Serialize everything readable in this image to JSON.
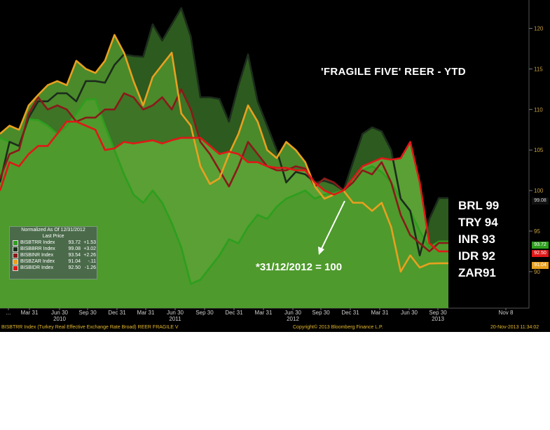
{
  "chart_data": {
    "type": "area",
    "title": "'FRAGILE FIVE' REER - YTD",
    "annotation": "*31/12/2012 = 100",
    "ylim": [
      85.5,
      123.5
    ],
    "y_ticks": [
      90,
      95,
      100,
      105,
      110,
      115,
      120
    ],
    "x_tick_labels": [
      "...",
      "Mar 31",
      "Jun 30",
      "Sep 30",
      "Dec 31",
      "Mar 31",
      "Jun 30",
      "Sep 30",
      "Dec 31",
      "Mar 31",
      "Jun 30",
      "Sep 30",
      "Dec 31",
      "Mar 31",
      "Jun 30",
      "Sep 30",
      "Nov 8"
    ],
    "year_labels": [
      "2010",
      "2011",
      "2012",
      "2013"
    ],
    "x": [
      "2009-12",
      "2010-01",
      "2010-02",
      "2010-03",
      "2010-04",
      "2010-05",
      "2010-06",
      "2010-07",
      "2010-08",
      "2010-09",
      "2010-10",
      "2010-11",
      "2010-12",
      "2011-01",
      "2011-02",
      "2011-03",
      "2011-04",
      "2011-05",
      "2011-06",
      "2011-07",
      "2011-08",
      "2011-09",
      "2011-10",
      "2011-11",
      "2011-12",
      "2012-01",
      "2012-02",
      "2012-03",
      "2012-04",
      "2012-05",
      "2012-06",
      "2012-07",
      "2012-08",
      "2012-09",
      "2012-10",
      "2012-11",
      "2012-12",
      "2013-01",
      "2013-02",
      "2013-03",
      "2013-04",
      "2013-05",
      "2013-06",
      "2013-07",
      "2013-08",
      "2013-09",
      "2013-10",
      "2013-11"
    ],
    "series": [
      {
        "name": "BISBTRR Index",
        "last_price": "93.72",
        "change": "+1.53",
        "color": "#2e9e1e",
        "values": [
          106.5,
          106.0,
          105.5,
          108.8,
          108.7,
          108.0,
          107.0,
          108.0,
          109.5,
          111.2,
          111.3,
          108.0,
          105.0,
          102.0,
          99.5,
          98.5,
          100.0,
          98.5,
          96.0,
          93.0,
          88.5,
          89.0,
          90.5,
          92.0,
          94.0,
          93.5,
          95.5,
          97.0,
          96.5,
          98.0,
          99.0,
          99.5,
          100.0,
          99.0,
          99.5,
          99.7,
          100.0,
          101.5,
          102.5,
          103.0,
          102.3,
          101.0,
          99.0,
          97.5,
          95.0,
          93.0,
          93.72,
          93.72
        ]
      },
      {
        "name": "BISBBRR Index",
        "last_price": "99.08",
        "change": "+3.02",
        "color": "#1c2c1c",
        "values": [
          101.0,
          106.0,
          105.5,
          109.0,
          111.0,
          111.0,
          112.0,
          112.0,
          111.0,
          113.5,
          113.5,
          113.3,
          115.5,
          116.8,
          116.6,
          116.5,
          120.5,
          118.5,
          120.5,
          122.5,
          119.0,
          111.5,
          111.5,
          111.3,
          108.5,
          113.0,
          116.8,
          111.0,
          108.0,
          105.0,
          101.0,
          102.3,
          102.0,
          101.0,
          101.2,
          100.8,
          100.0,
          103.5,
          107.0,
          107.8,
          107.3,
          105.0,
          99.0,
          97.5,
          92.0,
          96.5,
          99.08,
          99.08
        ]
      },
      {
        "name": "BISBINR Index",
        "last_price": "93.54",
        "change": "+2.26",
        "color": "#8a1a1a",
        "values": [
          101.5,
          104.5,
          105.0,
          109.5,
          111.5,
          110.0,
          110.5,
          110.0,
          108.5,
          109.0,
          109.0,
          110.0,
          110.0,
          112.0,
          111.5,
          110.0,
          110.5,
          111.5,
          110.0,
          112.5,
          110.0,
          106.0,
          104.5,
          102.5,
          100.5,
          103.0,
          106.0,
          104.5,
          103.0,
          102.5,
          102.5,
          103.0,
          102.7,
          100.5,
          101.5,
          101.0,
          100.0,
          101.0,
          102.5,
          102.0,
          103.5,
          101.0,
          97.0,
          94.5,
          93.5,
          92.5,
          93.54,
          93.54
        ]
      },
      {
        "name": "BISBZAR Index",
        "last_price": "91.04",
        "change": "-.11",
        "color": "#e8a020",
        "values": [
          107.0,
          108.0,
          107.5,
          110.5,
          111.8,
          113.0,
          113.5,
          113.0,
          116.0,
          115.0,
          114.5,
          116.0,
          119.2,
          117.0,
          113.5,
          110.5,
          114.0,
          115.5,
          117.0,
          109.5,
          108.0,
          103.0,
          100.8,
          101.5,
          104.5,
          107.0,
          110.5,
          108.5,
          105.0,
          104.0,
          106.0,
          105.0,
          103.5,
          100.5,
          99.0,
          99.5,
          100.0,
          98.5,
          98.5,
          97.5,
          98.5,
          95.5,
          90.0,
          92.0,
          90.5,
          91.0,
          91.04,
          91.04
        ]
      },
      {
        "name": "BISBIDR Index",
        "last_price": "92.50",
        "change": "-1.26",
        "color": "#e01818",
        "values": [
          100.0,
          103.5,
          103.0,
          104.5,
          105.5,
          105.5,
          107.0,
          108.5,
          108.5,
          108.0,
          107.5,
          105.0,
          105.2,
          106.0,
          105.8,
          106.0,
          106.2,
          105.8,
          106.2,
          106.5,
          106.5,
          106.5,
          105.5,
          104.5,
          104.8,
          104.5,
          103.5,
          103.5,
          103.0,
          102.8,
          102.8,
          102.5,
          102.5,
          101.0,
          100.0,
          99.5,
          100.0,
          101.5,
          103.0,
          103.5,
          104.0,
          103.8,
          104.0,
          106.0,
          101.0,
          93.5,
          92.5,
          92.5
        ]
      }
    ],
    "last_value_labels": [
      "99.08",
      "93.72",
      "92.50",
      "91.04"
    ],
    "side_labels": [
      "BRL 99",
      "TRY 94",
      "INR 93",
      "IDR 92",
      "ZAR91"
    ],
    "grid": false,
    "legend_position": "bottom-left"
  },
  "legend": {
    "title": "Normalized As Of 12/31/2012",
    "subtitle": "Last Price",
    "rows": [
      {
        "name": "BISBTRR Index",
        "price": "93.72",
        "change": "+1.53",
        "color": "#2e9e1e"
      },
      {
        "name": "BISBBRR Index",
        "price": "99.08",
        "change": "+3.02",
        "color": "#1c2c1c"
      },
      {
        "name": "BISBINR Index",
        "price": "93.54",
        "change": "+2.26",
        "color": "#8a1a1a"
      },
      {
        "name": "BISBZAR Index",
        "price": "91.04",
        "change": "-.11",
        "color": "#e8a020"
      },
      {
        "name": "BISBIDR Index",
        "price": "92.50",
        "change": "-1.26",
        "color": "#e01818"
      }
    ]
  },
  "footer": {
    "left": "BISBTRR Index (Turkey Real Effective Exchange Rate Broad) REER FRAGILE V",
    "center": "Copyright© 2013 Bloomberg Finance L.P.",
    "right": "20-Nov-2013 11:34:02"
  }
}
